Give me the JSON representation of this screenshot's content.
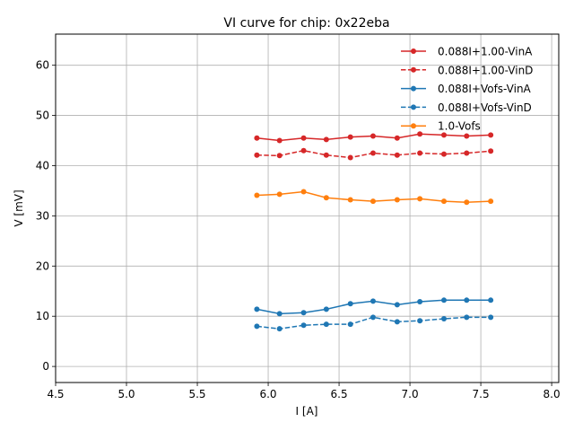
{
  "chart_data": {
    "type": "line",
    "title": "VI curve for chip: 0x22eba",
    "xlabel": "I [A]",
    "ylabel": "V [mV]",
    "xlim": [
      4.5,
      8.05
    ],
    "ylim": [
      -3.2,
      66.2
    ],
    "grid": true,
    "legend_position": "top-right",
    "xticks": [
      4.5,
      5.0,
      5.5,
      6.0,
      6.5,
      7.0,
      7.5,
      8.0
    ],
    "xtick_labels": [
      "4.5",
      "5.0",
      "5.5",
      "6.0",
      "6.5",
      "7.0",
      "7.5",
      "8.0"
    ],
    "yticks": [
      0,
      10,
      20,
      30,
      40,
      50,
      60
    ],
    "ytick_labels": [
      "0",
      "10",
      "20",
      "30",
      "40",
      "50",
      "60"
    ],
    "x": [
      5.92,
      6.08,
      6.25,
      6.41,
      6.58,
      6.74,
      6.91,
      7.07,
      7.24,
      7.4,
      7.57
    ],
    "series": [
      {
        "name": "0.088I+1.00-VinA",
        "color": "#d62728",
        "dashed": false,
        "values": [
          45.5,
          45.0,
          45.5,
          45.2,
          45.7,
          45.9,
          45.5,
          46.3,
          46.1,
          45.9,
          46.1
        ]
      },
      {
        "name": "0.088I+1.00-VinD",
        "color": "#d62728",
        "dashed": true,
        "values": [
          42.1,
          42.0,
          43.0,
          42.1,
          41.6,
          42.5,
          42.1,
          42.5,
          42.3,
          42.5,
          42.9
        ]
      },
      {
        "name": "0.088I+Vofs-VinA",
        "color": "#1f77b4",
        "dashed": false,
        "values": [
          11.4,
          10.5,
          10.7,
          11.4,
          12.5,
          13.0,
          12.3,
          12.9,
          13.2,
          13.2,
          13.2
        ]
      },
      {
        "name": "0.088I+Vofs-VinD",
        "color": "#1f77b4",
        "dashed": true,
        "values": [
          8.0,
          7.5,
          8.2,
          8.4,
          8.4,
          9.8,
          8.9,
          9.1,
          9.5,
          9.8,
          9.8
        ]
      },
      {
        "name": "1.0-Vofs",
        "color": "#ff7f0e",
        "dashed": false,
        "values": [
          34.1,
          34.3,
          34.8,
          33.6,
          33.2,
          32.9,
          33.2,
          33.4,
          32.9,
          32.7,
          32.9
        ]
      }
    ]
  }
}
